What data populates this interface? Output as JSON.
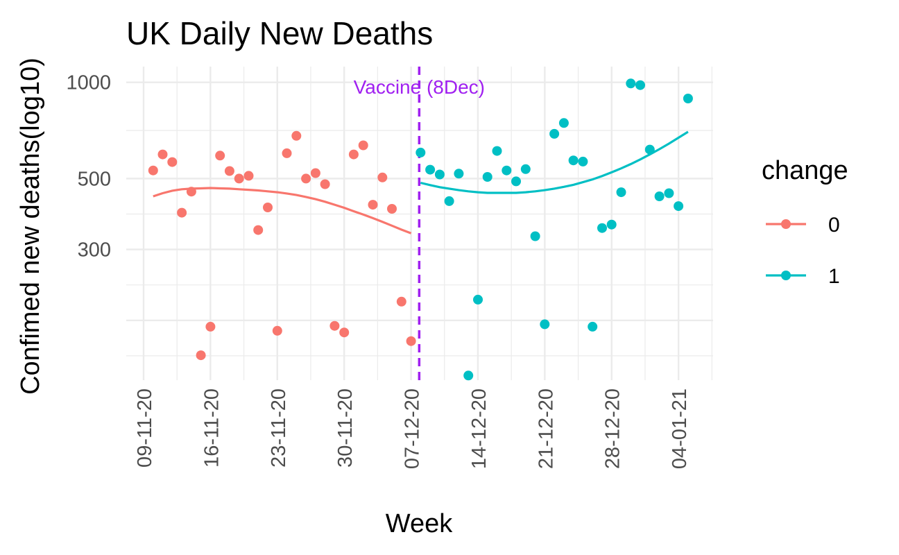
{
  "chart_data": {
    "type": "scatter",
    "title": "UK Daily New Deaths",
    "xlabel": "Week",
    "ylabel": "Confimed new deaths(log10)",
    "y_scale": "log10",
    "ylim": [
      117,
      1120
    ],
    "y_ticks": [
      300,
      500,
      1000
    ],
    "x_tick_labels": [
      "09-11-20",
      "16-11-20",
      "23-11-20",
      "30-11-20",
      "07-12-20",
      "14-12-20",
      "21-12-20",
      "28-12-20",
      "04-01-21"
    ],
    "grid": true,
    "legend": {
      "title": "change",
      "position": "right",
      "entries": [
        "0",
        "1"
      ]
    },
    "series": [
      {
        "name": "0",
        "color": "#F8766D",
        "x": [
          "2020-11-10",
          "2020-11-11",
          "2020-11-12",
          "2020-11-13",
          "2020-11-14",
          "2020-11-15",
          "2020-11-16",
          "2020-11-17",
          "2020-11-18",
          "2020-11-19",
          "2020-11-20",
          "2020-11-21",
          "2020-11-22",
          "2020-11-23",
          "2020-11-24",
          "2020-11-25",
          "2020-11-26",
          "2020-11-27",
          "2020-11-28",
          "2020-11-29",
          "2020-11-30",
          "2020-12-01",
          "2020-12-02",
          "2020-12-03",
          "2020-12-04",
          "2020-12-05",
          "2020-12-06",
          "2020-12-07"
        ],
        "y": [
          530,
          595,
          563,
          391,
          455,
          140,
          172,
          590,
          528,
          500,
          510,
          345,
          406,
          167,
          600,
          680,
          500,
          520,
          480,
          173,
          165,
          595,
          635,
          414,
          504,
          402,
          206,
          155
        ],
        "trend": [
          440,
          450,
          458,
          463,
          465,
          466,
          467,
          466,
          465,
          463,
          461,
          459,
          456,
          453,
          449,
          444,
          438,
          431,
          423,
          414,
          405,
          395,
          386,
          376,
          366,
          356,
          346,
          337
        ]
      },
      {
        "name": "1",
        "color": "#00BFC4",
        "x": [
          "2020-12-08",
          "2020-12-09",
          "2020-12-10",
          "2020-12-11",
          "2020-12-12",
          "2020-12-13",
          "2020-12-14",
          "2020-12-15",
          "2020-12-16",
          "2020-12-17",
          "2020-12-18",
          "2020-12-19",
          "2020-12-20",
          "2020-12-21",
          "2020-12-22",
          "2020-12-23",
          "2020-12-24",
          "2020-12-25",
          "2020-12-26",
          "2020-12-27",
          "2020-12-28",
          "2020-12-29",
          "2020-12-30",
          "2020-12-31",
          "2021-01-01",
          "2021-01-02",
          "2021-01-03",
          "2021-01-04",
          "2021-01-05"
        ],
        "y": [
          603,
          533,
          515,
          425,
          518,
          121,
          209,
          506,
          610,
          530,
          490,
          535,
          330,
          175,
          690,
          746,
          570,
          565,
          172,
          350,
          359,
          453,
          992,
          980,
          616,
          440,
          450,
          410,
          890
        ],
        "trend": [
          485,
          477,
          470,
          465,
          460,
          456,
          453,
          451,
          451,
          451,
          451,
          453,
          456,
          460,
          465,
          471,
          478,
          487,
          497,
          509,
          523,
          538,
          555,
          574,
          595,
          618,
          643,
          671,
          700
        ]
      }
    ],
    "annotations": [
      {
        "type": "vline",
        "x": "2020-12-08",
        "label": "Vaccine (8Dec)",
        "color": "#A020F0",
        "style": "dashed"
      }
    ]
  }
}
